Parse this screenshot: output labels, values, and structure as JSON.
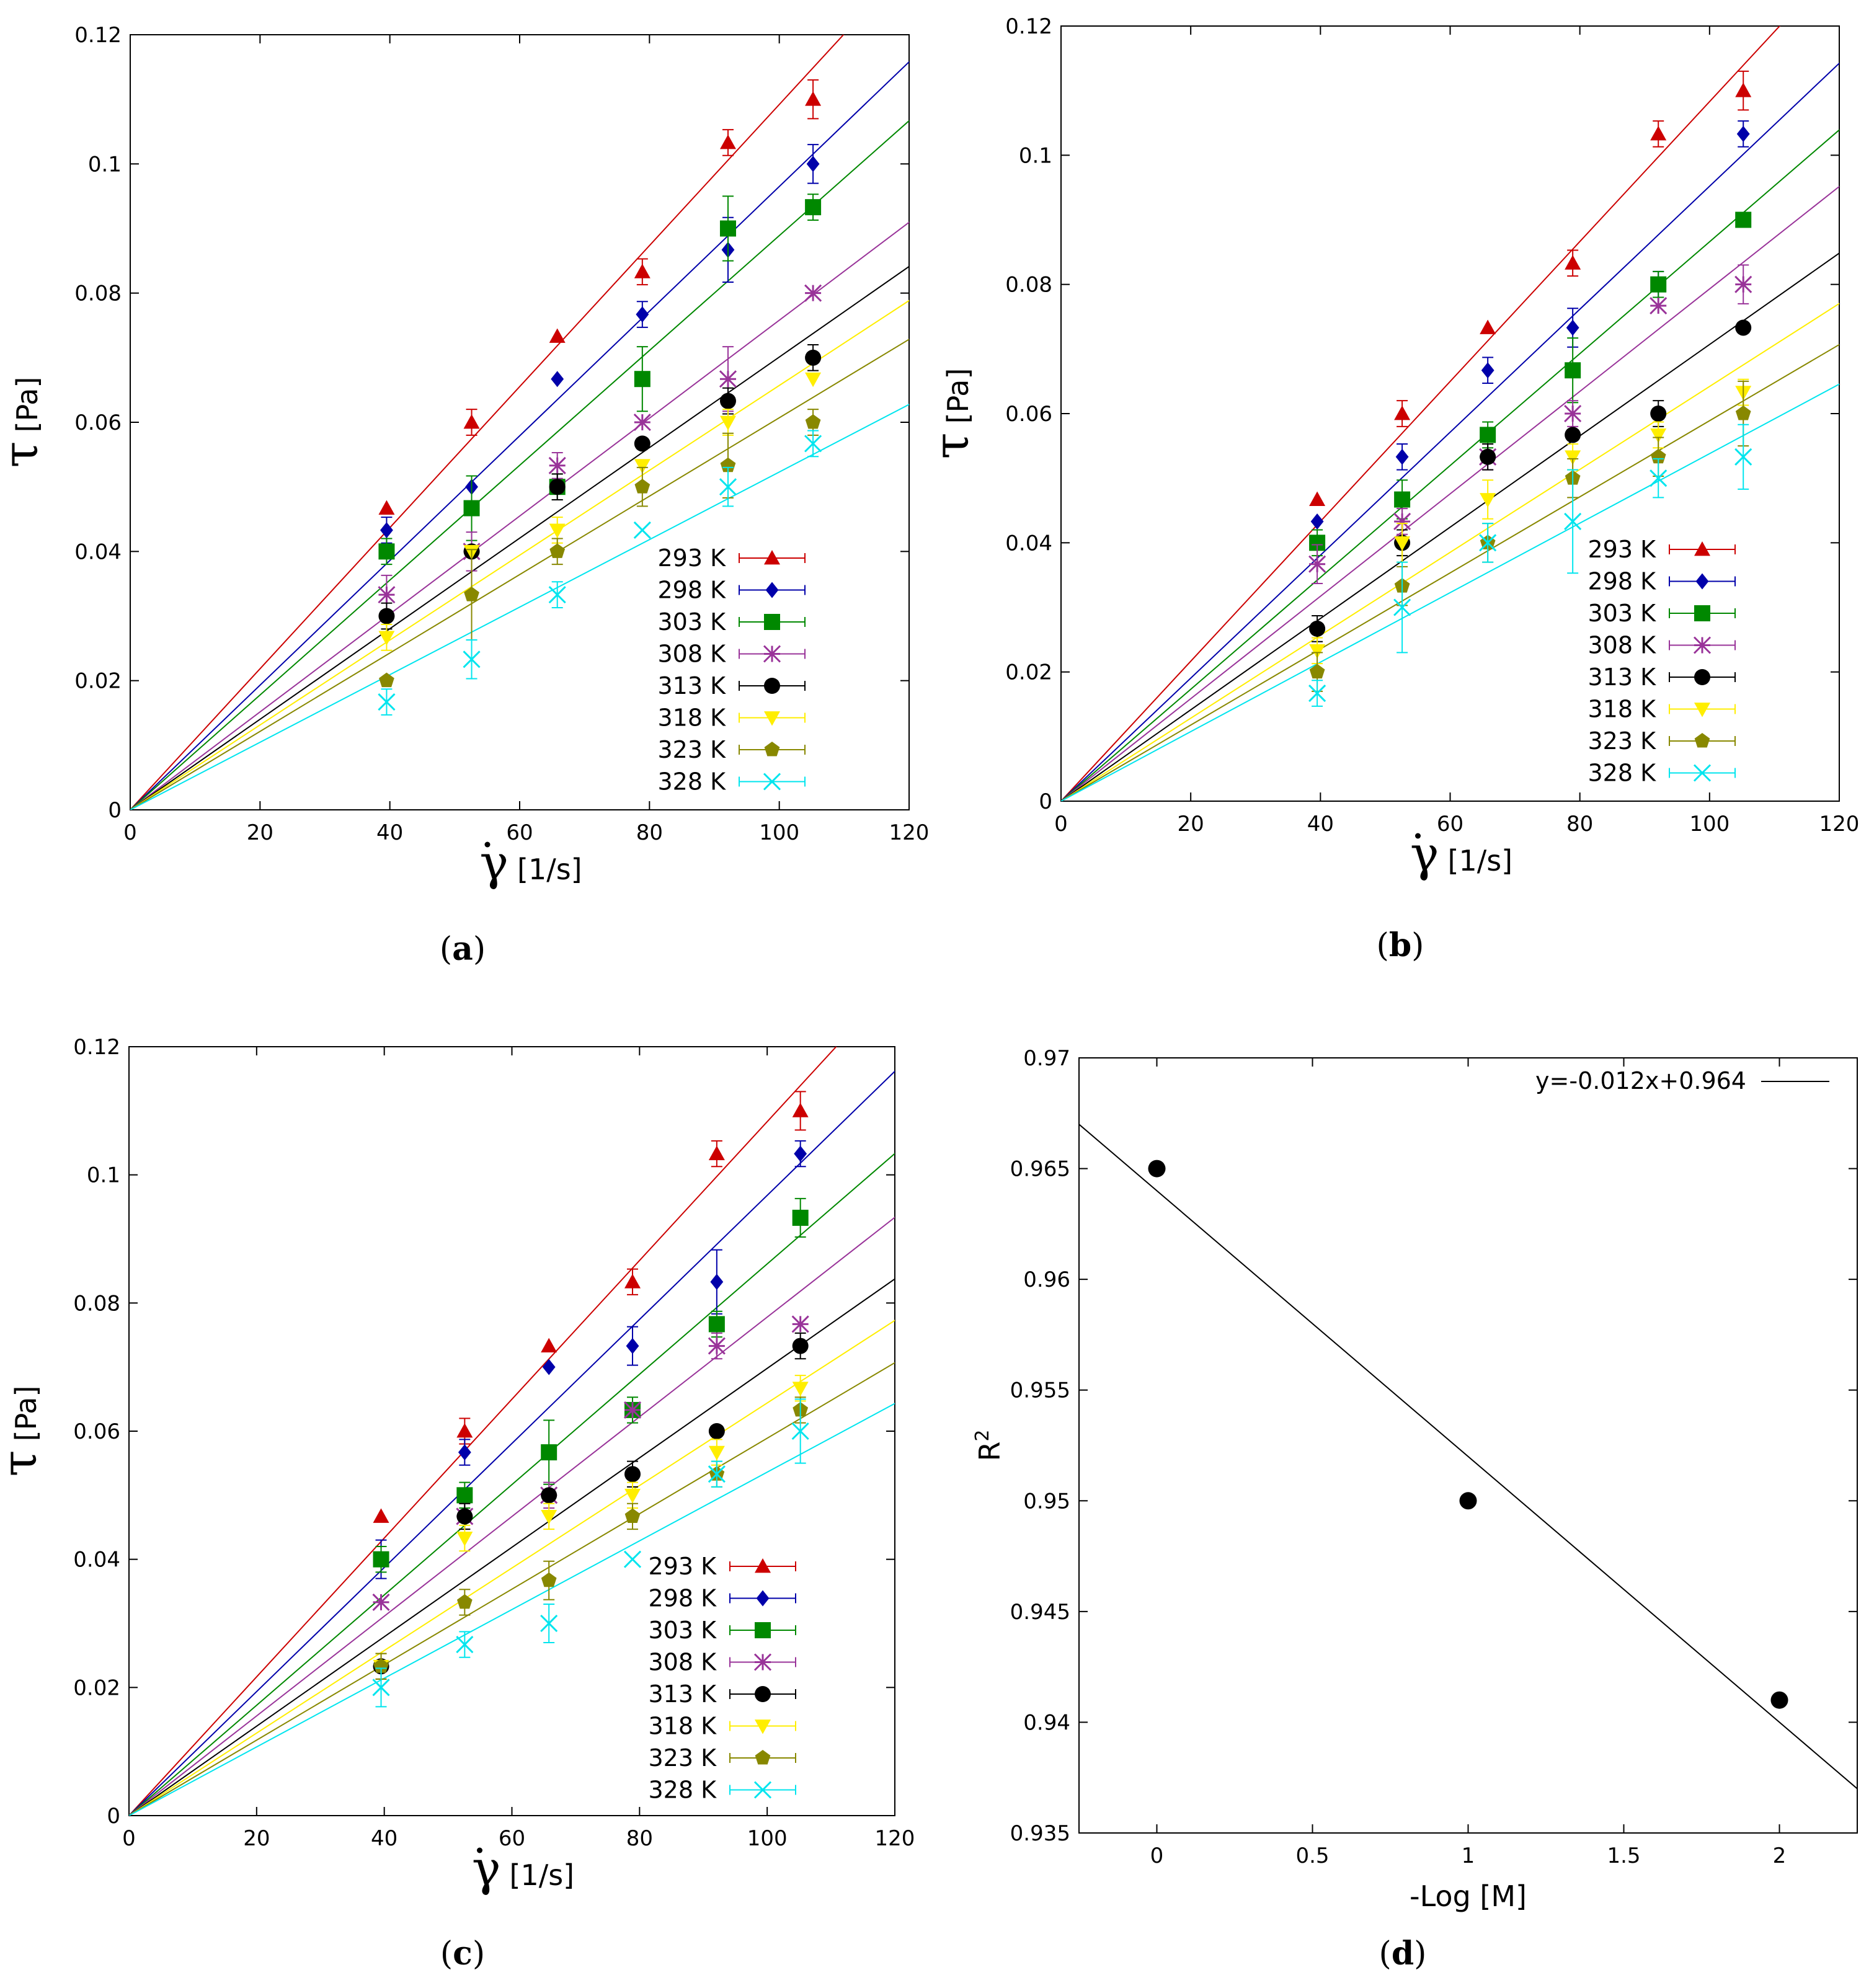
{
  "chart_data": [
    {
      "type": "scatter",
      "panel": "a",
      "caption_letter": "a",
      "xlabel": "[1/s]",
      "xlabel_symbol": "γ",
      "ylabel": "[Pa]",
      "ylabel_symbol": "τ",
      "xlim": [
        0,
        120
      ],
      "ylim": [
        0,
        0.12
      ],
      "xticks": [
        "0",
        "20",
        "40",
        "60",
        "80",
        "100",
        "120"
      ],
      "yticks": [
        "0",
        "0.02",
        "0.04",
        "0.06",
        "0.08",
        "0.1",
        "0.12"
      ],
      "x": [
        39.5,
        52.6,
        65.8,
        78.9,
        92.1,
        105.2
      ],
      "legend_position": "bottom-right",
      "series": [
        {
          "name": "293 K",
          "color": "#cc0000",
          "marker": "triangle",
          "slope": 0.001092,
          "values": [
            0.0467,
            0.06,
            0.0733,
            0.0833,
            0.1033,
            0.11
          ],
          "errors": [
            0,
            0.002,
            0,
            0.002,
            0.002,
            0.003
          ]
        },
        {
          "name": "298 K",
          "color": "#0000aa",
          "marker": "diamond",
          "slope": 0.000965,
          "values": [
            0.0433,
            0.05,
            0.0667,
            0.0767,
            0.0867,
            0.1
          ],
          "errors": [
            0.002,
            0,
            0,
            0.002,
            0.005,
            0.003
          ]
        },
        {
          "name": "303 K",
          "color": "#008800",
          "marker": "square",
          "slope": 0.000889,
          "values": [
            0.04,
            0.0467,
            0.05,
            0.0667,
            0.09,
            0.0933
          ],
          "errors": [
            0.002,
            0.005,
            0.002,
            0.005,
            0.005,
            0.002
          ]
        },
        {
          "name": "308 K",
          "color": "#993399",
          "marker": "star",
          "slope": 0.000758,
          "values": [
            0.0333,
            0.04,
            0.0533,
            0.06,
            0.0667,
            0.08
          ],
          "errors": [
            0.003,
            0.003,
            0.002,
            0,
            0.005,
            0
          ]
        },
        {
          "name": "313 K",
          "color": "#000000",
          "marker": "circle",
          "slope": 0.000701,
          "values": [
            0.03,
            0.04,
            0.05,
            0.0567,
            0.0633,
            0.07
          ],
          "errors": [
            0.002,
            0,
            0.002,
            0,
            0.002,
            0.002
          ]
        },
        {
          "name": "318 K",
          "color": "#ffee00",
          "marker": "invtriangle",
          "slope": 0.000657,
          "values": [
            0.0267,
            0.04,
            0.0433,
            0.0533,
            0.06,
            0.0667
          ],
          "errors": [
            0.002,
            0,
            0.002,
            0,
            0.002,
            0
          ]
        },
        {
          "name": "323 K",
          "color": "#888800",
          "marker": "pentagon",
          "slope": 0.000607,
          "values": [
            0.02,
            0.0333,
            0.04,
            0.05,
            0.0533,
            0.06
          ],
          "errors": [
            0,
            0.007,
            0.002,
            0.003,
            0.005,
            0.002
          ]
        },
        {
          "name": "328 K",
          "color": "#00e5ee",
          "marker": "cross",
          "slope": 0.000523,
          "values": [
            0.0167,
            0.0233,
            0.0333,
            0.0433,
            0.05,
            0.0567
          ],
          "errors": [
            0.002,
            0.003,
            0.002,
            0,
            0.003,
            0.002
          ]
        }
      ]
    },
    {
      "type": "scatter",
      "panel": "b",
      "caption_letter": "b",
      "xlabel": "[1/s]",
      "xlabel_symbol": "γ",
      "ylabel": "[Pa]",
      "ylabel_symbol": "τ",
      "xlim": [
        0,
        120
      ],
      "ylim": [
        0,
        0.12
      ],
      "xticks": [
        "0",
        "20",
        "40",
        "60",
        "80",
        "100",
        "120"
      ],
      "yticks": [
        "0",
        "0.02",
        "0.04",
        "0.06",
        "0.08",
        "0.1",
        "0.12"
      ],
      "x": [
        39.5,
        52.6,
        65.8,
        78.9,
        92.1,
        105.2
      ],
      "legend_position": "bottom-right",
      "series": [
        {
          "name": "293 K",
          "color": "#cc0000",
          "marker": "triangle",
          "slope": 0.001083,
          "values": [
            0.0467,
            0.06,
            0.0733,
            0.0833,
            0.1033,
            0.11
          ],
          "errors": [
            0,
            0.002,
            0,
            0.002,
            0.002,
            0.003
          ]
        },
        {
          "name": "298 K",
          "color": "#0000aa",
          "marker": "diamond",
          "slope": 0.000952,
          "values": [
            0.0433,
            0.0533,
            0.0667,
            0.0733,
            0.08,
            0.1033
          ],
          "errors": [
            0,
            0.002,
            0.002,
            0.003,
            0.002,
            0.002
          ]
        },
        {
          "name": "303 K",
          "color": "#008800",
          "marker": "square",
          "slope": 0.000866,
          "values": [
            0.04,
            0.0467,
            0.0567,
            0.0667,
            0.08,
            0.09
          ],
          "errors": [
            0.002,
            0.003,
            0.002,
            0.005,
            0.002,
            0
          ]
        },
        {
          "name": "308 K",
          "color": "#993399",
          "marker": "star",
          "slope": 0.000793,
          "values": [
            0.0367,
            0.0433,
            0.0533,
            0.06,
            0.0767,
            0.08
          ],
          "errors": [
            0.003,
            0.002,
            0.002,
            0.002,
            0,
            0.003
          ]
        },
        {
          "name": "313 K",
          "color": "#000000",
          "marker": "circle",
          "slope": 0.000707,
          "values": [
            0.0267,
            0.04,
            0.0533,
            0.0567,
            0.06,
            0.0733
          ],
          "errors": [
            0.002,
            0.002,
            0.002,
            0,
            0.002,
            0
          ]
        },
        {
          "name": "318 K",
          "color": "#ffee00",
          "marker": "invtriangle",
          "slope": 0.000642,
          "values": [
            0.0233,
            0.04,
            0.0467,
            0.0533,
            0.0567,
            0.0633
          ],
          "errors": [
            0.002,
            0.003,
            0.003,
            0.002,
            0.002,
            0.002
          ]
        },
        {
          "name": "323 K",
          "color": "#888800",
          "marker": "pentagon",
          "slope": 0.000589,
          "values": [
            0.02,
            0.0333,
            0.04,
            0.05,
            0.0533,
            0.06
          ],
          "errors": [
            0.003,
            0.003,
            0.003,
            0.003,
            0.003,
            0.005
          ]
        },
        {
          "name": "328 K",
          "color": "#00e5ee",
          "marker": "cross",
          "slope": 0.000538,
          "values": [
            0.0167,
            0.03,
            0.04,
            0.0433,
            0.05,
            0.0533
          ],
          "errors": [
            0.002,
            0.007,
            0.003,
            0.008,
            0.003,
            0.005
          ]
        }
      ]
    },
    {
      "type": "scatter",
      "panel": "c",
      "caption_letter": "c",
      "xlabel": "[1/s]",
      "xlabel_symbol": "γ",
      "ylabel": "[Pa]",
      "ylabel_symbol": "τ",
      "xlim": [
        0,
        120
      ],
      "ylim": [
        0,
        0.12
      ],
      "xticks": [
        "0",
        "20",
        "40",
        "60",
        "80",
        "100",
        "120"
      ],
      "yticks": [
        "0",
        "0.02",
        "0.04",
        "0.06",
        "0.08",
        "0.1",
        "0.12"
      ],
      "x": [
        39.5,
        52.6,
        65.8,
        78.9,
        92.1,
        105.2
      ],
      "legend_position": "bottom-right",
      "series": [
        {
          "name": "293 K",
          "color": "#cc0000",
          "marker": "triangle",
          "slope": 0.001083,
          "values": [
            0.0467,
            0.06,
            0.0733,
            0.0833,
            0.1033,
            0.11
          ],
          "errors": [
            0,
            0.002,
            0,
            0.002,
            0.002,
            0.003
          ]
        },
        {
          "name": "298 K",
          "color": "#0000aa",
          "marker": "diamond",
          "slope": 0.000968,
          "values": [
            0.04,
            0.0567,
            0.07,
            0.0733,
            0.0833,
            0.1033
          ],
          "errors": [
            0.003,
            0.002,
            0,
            0.003,
            0.005,
            0.002
          ]
        },
        {
          "name": "303 K",
          "color": "#008800",
          "marker": "square",
          "slope": 0.000861,
          "values": [
            0.04,
            0.05,
            0.0567,
            0.0633,
            0.0767,
            0.0933
          ],
          "errors": [
            0.002,
            0.002,
            0.005,
            0.002,
            0.002,
            0.003
          ]
        },
        {
          "name": "308 K",
          "color": "#993399",
          "marker": "star",
          "slope": 0.000778,
          "values": [
            0.0333,
            0.0467,
            0.05,
            0.0633,
            0.0733,
            0.0767
          ],
          "errors": [
            0,
            0.002,
            0.002,
            0,
            0.002,
            0
          ]
        },
        {
          "name": "313 K",
          "color": "#000000",
          "marker": "circle",
          "slope": 0.000698,
          "values": [
            0.0233,
            0.0467,
            0.05,
            0.0533,
            0.06,
            0.0733
          ],
          "errors": [
            0.002,
            0.002,
            0,
            0.002,
            0,
            0.002
          ]
        },
        {
          "name": "318 K",
          "color": "#ffee00",
          "marker": "invtriangle",
          "slope": 0.000644,
          "values": [
            0.0233,
            0.0433,
            0.0467,
            0.05,
            0.0567,
            0.0667
          ],
          "errors": [
            0.002,
            0.002,
            0.002,
            0.002,
            0.002,
            0.002
          ]
        },
        {
          "name": "323 K",
          "color": "#888800",
          "marker": "pentagon",
          "slope": 0.000589,
          "values": [
            0.0233,
            0.0333,
            0.0367,
            0.0467,
            0.0533,
            0.0633
          ],
          "errors": [
            0.002,
            0.002,
            0.003,
            0.002,
            0.002,
            0.002
          ]
        },
        {
          "name": "328 K",
          "color": "#00e5ee",
          "marker": "cross",
          "slope": 0.000536,
          "values": [
            0.02,
            0.0267,
            0.03,
            0.04,
            0.0533,
            0.06
          ],
          "errors": [
            0.003,
            0.002,
            0.003,
            0,
            0.002,
            0.005
          ]
        }
      ]
    },
    {
      "type": "scatter",
      "panel": "d",
      "caption_letter": "d",
      "xlabel": "-Log [M]",
      "ylabel": "R",
      "ylabel_sup": "2",
      "xlim": [
        -0.25,
        2.25
      ],
      "ylim": [
        0.935,
        0.97
      ],
      "xticks": [
        "0",
        "0.5",
        "1",
        "1.5",
        "2"
      ],
      "xtick_values": [
        0,
        0.5,
        1,
        1.5,
        2
      ],
      "yticks": [
        "0.935",
        "0.94",
        "0.945",
        "0.95",
        "0.955",
        "0.96",
        "0.965",
        "0.97"
      ],
      "ytick_values": [
        0.935,
        0.94,
        0.945,
        0.95,
        0.955,
        0.96,
        0.965,
        0.97
      ],
      "points": [
        {
          "x": 0,
          "y": 0.965
        },
        {
          "x": 1,
          "y": 0.95
        },
        {
          "x": 2,
          "y": 0.941
        }
      ],
      "fit": {
        "label": "y=-0.012x+0.964",
        "slope": -0.012,
        "intercept": 0.964
      },
      "legend_position": "top-right"
    }
  ]
}
